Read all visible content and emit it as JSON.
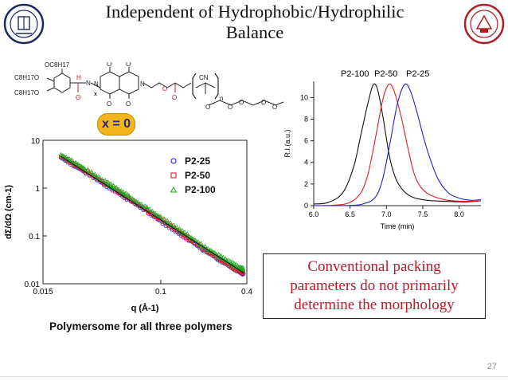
{
  "slide": {
    "title_line1": "Independent of Hydrophobic/Hydrophilic",
    "title_line2": "Balance",
    "page_number": "27",
    "x_label": "x = 0",
    "conclusion_lines": [
      "Conventional packing",
      "parameters do not primarily",
      "determine the morphology"
    ],
    "caption": "Polymersome for all three polymers",
    "colors": {
      "title": "#111111",
      "conclusion": "#c0172a",
      "badge": "#f2b51c",
      "logo_left": "#1c2a5a",
      "logo_right": "#b01e24"
    }
  },
  "structure": {
    "labels": {
      "oc8_top": "OC8H17",
      "c8_mid": "C8H17O",
      "c8_low": "C8H17O",
      "h": "H",
      "n_amide": "N",
      "o_amide": "O",
      "x_sub": "x",
      "n_left": "N",
      "n_right": "N",
      "o1": "O",
      "o2": "O",
      "o3": "O",
      "o4": "O",
      "o_ester": "O",
      "o_link": "O",
      "cn": "CN",
      "n_sub": "n",
      "o_c1": "O",
      "o_c2": "O",
      "o_c3": "O",
      "o_c4": "O",
      "o_c5": "O"
    }
  },
  "chart_data": [
    {
      "type": "scatter",
      "title": "",
      "xlabel": "q (Å-1)",
      "ylabel": "dΣ/dΩ (cm-1)",
      "xscale": "log",
      "yscale": "log",
      "xlim": [
        0.015,
        0.4
      ],
      "ylim": [
        0.01,
        10
      ],
      "xticks": [
        0.015,
        0.1,
        0.4
      ],
      "xtick_labels": [
        "0.015",
        "0.1",
        "0.4"
      ],
      "yticks": [
        0.01,
        0.1,
        1,
        10
      ],
      "ytick_labels": [
        "0.01",
        "0.1",
        "1",
        "10"
      ],
      "legend": "top-right",
      "series": [
        {
          "name": "P2-25",
          "marker": "circle",
          "color": "#2222cc",
          "x": [
            0.02,
            0.025,
            0.03,
            0.04,
            0.05,
            0.06,
            0.08,
            0.1,
            0.13,
            0.16,
            0.2,
            0.25,
            0.3,
            0.35,
            0.38
          ],
          "y": [
            4.3,
            2.9,
            2.1,
            1.2,
            0.8,
            0.56,
            0.32,
            0.2,
            0.12,
            0.08,
            0.05,
            0.033,
            0.024,
            0.018,
            0.016
          ]
        },
        {
          "name": "P2-50",
          "marker": "square",
          "color": "#d22222",
          "x": [
            0.02,
            0.025,
            0.03,
            0.04,
            0.05,
            0.06,
            0.08,
            0.1,
            0.13,
            0.16,
            0.2,
            0.25,
            0.3,
            0.35,
            0.38
          ],
          "y": [
            4.6,
            3.1,
            2.25,
            1.3,
            0.86,
            0.6,
            0.34,
            0.22,
            0.13,
            0.085,
            0.053,
            0.035,
            0.025,
            0.019,
            0.017
          ]
        },
        {
          "name": "P2-100",
          "marker": "triangle",
          "color": "#22aa22",
          "x": [
            0.02,
            0.025,
            0.03,
            0.04,
            0.05,
            0.06,
            0.08,
            0.1,
            0.13,
            0.16,
            0.2,
            0.25,
            0.3,
            0.35,
            0.38
          ],
          "y": [
            5.0,
            3.4,
            2.45,
            1.42,
            0.94,
            0.66,
            0.38,
            0.24,
            0.145,
            0.095,
            0.06,
            0.04,
            0.029,
            0.022,
            0.02
          ]
        }
      ]
    },
    {
      "type": "line",
      "title": "",
      "xlabel": "Time (min)",
      "ylabel": "R.I.(a.u.)",
      "xlim": [
        6.0,
        8.3
      ],
      "ylim": [
        0,
        11.5
      ],
      "xticks": [
        6.0,
        6.5,
        7.0,
        7.5,
        8.0
      ],
      "xtick_labels": [
        "6.0",
        "6.5",
        "7.0",
        "7.5",
        "8.0"
      ],
      "yticks": [
        0,
        2,
        4,
        6,
        8,
        10
      ],
      "ytick_labels": [
        "0",
        "2",
        "4",
        "6",
        "8",
        "10"
      ],
      "series": [
        {
          "name": "P2-100",
          "color": "#111111",
          "peak_time": 6.85,
          "peak_value": 11.2,
          "x": [
            6.0,
            6.2,
            6.4,
            6.55,
            6.65,
            6.75,
            6.82,
            6.88,
            6.95,
            7.05,
            7.15,
            7.3,
            7.5,
            7.8,
            8.1,
            8.3
          ],
          "y": [
            0.15,
            0.3,
            1.2,
            3.6,
            6.6,
            9.6,
            11.2,
            10.7,
            8.3,
            4.3,
            2.2,
            1.0,
            0.55,
            0.4,
            0.35,
            0.45
          ]
        },
        {
          "name": "P2-50",
          "color": "#e02020",
          "peak_time": 7.05,
          "peak_value": 11.2,
          "x": [
            6.0,
            6.3,
            6.5,
            6.65,
            6.75,
            6.85,
            6.95,
            7.03,
            7.1,
            7.2,
            7.3,
            7.4,
            7.55,
            7.8,
            8.1,
            8.3
          ],
          "y": [
            0.0,
            0.05,
            0.3,
            1.2,
            3.0,
            6.3,
            9.8,
            11.2,
            10.7,
            8.3,
            5.2,
            2.6,
            1.2,
            0.55,
            0.4,
            0.45
          ]
        },
        {
          "name": "P2-25",
          "color": "#2020cc",
          "peak_time": 7.25,
          "peak_value": 11.2,
          "x": [
            6.0,
            6.5,
            6.7,
            6.85,
            6.95,
            7.05,
            7.15,
            7.25,
            7.33,
            7.43,
            7.55,
            7.7,
            7.85,
            8.0,
            8.15,
            8.3
          ],
          "y": [
            0.0,
            0.02,
            0.2,
            0.8,
            2.5,
            5.8,
            9.4,
            11.2,
            10.6,
            8.4,
            5.4,
            2.6,
            1.2,
            0.7,
            0.5,
            0.55
          ]
        }
      ]
    }
  ]
}
